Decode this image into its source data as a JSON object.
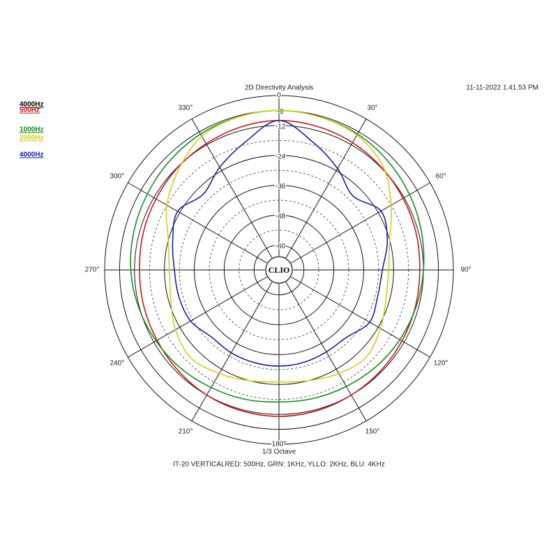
{
  "chart_data": {
    "type": "polar",
    "title": "2D Directivity Analysis",
    "timestamp": "11-11-2022 1.41.53 PM",
    "x_label": "1/3 Octave",
    "caption": "IT-20 VERTICALRED: 500Hz, GRN: 1KHz, YLLO: 2KHz, BLU: 4KHz",
    "center_label": "CLIO",
    "legend_title": "4000Hz",
    "theta": [
      0,
      15,
      30,
      45,
      60,
      75,
      90,
      105,
      120,
      135,
      150,
      165,
      180,
      195,
      210,
      225,
      240,
      255,
      270,
      285,
      300,
      315,
      330,
      345
    ],
    "thetaticks": [
      0,
      {
        "value": 30,
        "label": "30°"
      },
      {
        "value": 60,
        "label": "60°"
      },
      {
        "value": 90,
        "label": "90°"
      },
      {
        "value": 120,
        "label": "120°"
      },
      {
        "value": 150,
        "label": "150°"
      },
      {
        "value": 180,
        "label": "180°"
      },
      {
        "value": 210,
        "label": "210°"
      },
      {
        "value": 240,
        "label": "240°"
      },
      {
        "value": 270,
        "label": "270°"
      },
      {
        "value": 300,
        "label": "300°"
      },
      {
        "value": 330,
        "label": "330°"
      }
    ],
    "rlim": [
      -70,
      0
    ],
    "rticks": [
      0,
      -6,
      -12,
      -24,
      -36,
      -48,
      -60
    ],
    "rminor": [
      -18,
      -30,
      -42,
      -54,
      -66
    ],
    "series": [
      {
        "name": "500Hz",
        "color": "#c8141e",
        "values": [
          -10,
          -10.4,
          -11,
          -11.8,
          -12.5,
          -13,
          -13.5,
          -13.3,
          -13,
          -12.5,
          -12,
          -11.5,
          -11.2,
          -11.5,
          -12,
          -12.8,
          -13.5,
          -13.8,
          -14,
          -13.5,
          -13,
          -12.2,
          -11.5,
          -10.6
        ]
      },
      {
        "name": "1000Hz",
        "color": "#148c1e",
        "values": [
          -6,
          -6.4,
          -7,
          -8.2,
          -9.5,
          -10.8,
          -12,
          -13,
          -14,
          -15,
          -16,
          -16.6,
          -17,
          -16.3,
          -15.5,
          -14.2,
          -13,
          -11.7,
          -10.5,
          -9.7,
          -9,
          -8,
          -7,
          -6.4
        ]
      },
      {
        "name": "2000Hz",
        "color": "#d2cd1e",
        "values": [
          -6,
          -6.5,
          -7.5,
          -11,
          -18,
          -24,
          -26,
          -25.5,
          -23,
          -20.5,
          -22,
          -24,
          -25,
          -24,
          -22,
          -20,
          -22,
          -25,
          -26,
          -24,
          -18,
          -13,
          -8,
          -6.5
        ]
      },
      {
        "name": "4000Hz",
        "color": "#14239b",
        "values": [
          -10,
          -17,
          -23,
          -28,
          -22.7,
          -25,
          -28.5,
          -29,
          -28,
          -31.7,
          -32,
          -31.6,
          -31.4,
          -31.5,
          -31.6,
          -31.8,
          -29,
          -28.4,
          -28,
          -25.8,
          -23,
          -27,
          -22.4,
          -17
        ]
      }
    ]
  }
}
